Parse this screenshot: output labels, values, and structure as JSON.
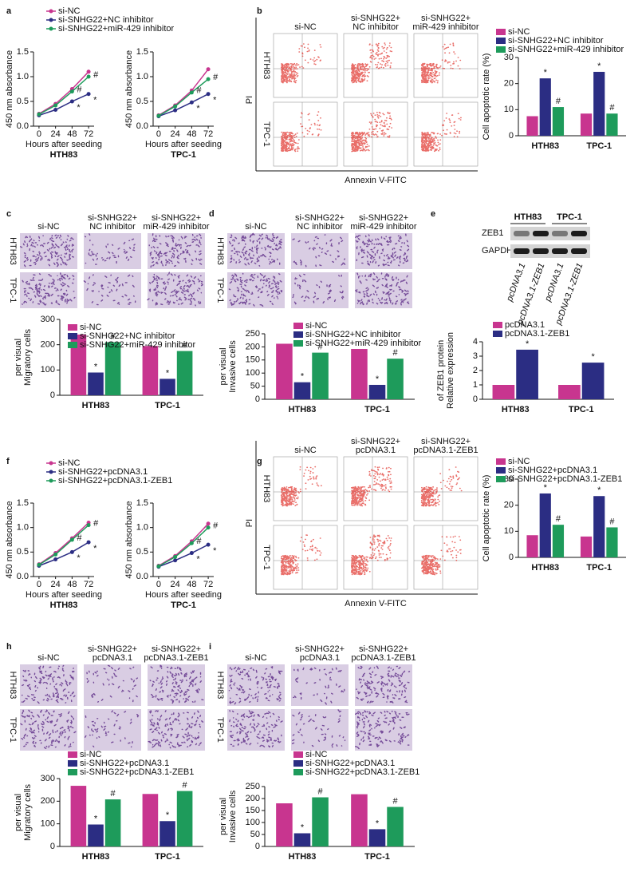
{
  "panel_letters": [
    "a",
    "b",
    "c",
    "d",
    "e",
    "f",
    "g",
    "h",
    "i"
  ],
  "images": [
    {
      "columns": [
        [
          "si-NC"
        ],
        [
          "si-SNHG22+",
          "NC inhibitor"
        ],
        [
          "si-SNHG22+",
          "miR-429 inhibitor"
        ]
      ],
      "rows": [
        "HTH83",
        "TPC-1"
      ],
      "xlabel": "Annexin V-FITC",
      "ylabel": "PI"
    },
    {
      "columns": [
        [
          "si-NC"
        ],
        [
          "si-SNHG22+",
          "NC inhibitor"
        ],
        [
          "si-SNHG22+",
          "miR-429 inhibitor"
        ]
      ],
      "rows": [
        "HTH83",
        "TPC-1"
      ]
    },
    {
      "columns": [
        [
          "si-NC"
        ],
        [
          "si-SNHG22+",
          "NC inhibitor"
        ],
        [
          "si-SNHG22+",
          "miR-429 inhibitor"
        ]
      ],
      "rows": [
        "HTH83",
        "TPC-1"
      ]
    },
    {
      "columns": [
        [
          "si-NC"
        ],
        [
          "si-SNHG22+",
          "pcDNA3.1"
        ],
        [
          "si-SNHG22+",
          "pcDNA3.1-ZEB1"
        ]
      ],
      "rows": [
        "HTH83",
        "TPC-1"
      ],
      "xlabel": "Annexin V-FITC",
      "ylabel": "PI"
    },
    {
      "columns": [
        [
          "si-NC"
        ],
        [
          "si-SNHG22+",
          "pcDNA3.1"
        ],
        [
          "si-SNHG22+",
          "pcDNA3.1-ZEB1"
        ]
      ],
      "rows": [
        "HTH83",
        "TPC-1"
      ]
    },
    {
      "columns": [
        [
          "si-NC"
        ],
        [
          "si-SNHG22+",
          "pcDNA3.1"
        ],
        [
          "si-SNHG22+",
          "pcDNA3.1-ZEB1"
        ]
      ],
      "rows": [
        "HTH83",
        "TPC-1"
      ]
    }
  ],
  "blot": {
    "groups": [
      "HTH83",
      "TPC-1"
    ],
    "rows": [
      "ZEB1",
      "GAPDH"
    ],
    "lanes": [
      "pcDNA3.1",
      "pcDNA3.1-ZEB1",
      "pcDNA3.1",
      "pcDNA3.1-ZEB1"
    ]
  },
  "chart_data": [
    {
      "type": "line",
      "subtitle": "HTH83",
      "xlabel": "Hours after seeding",
      "ylabel": "450 nm absorbance",
      "x": [
        0,
        24,
        48,
        72
      ],
      "xlim": [
        -8,
        80
      ],
      "xticks": [
        0,
        24,
        48,
        72
      ],
      "ylim": [
        0,
        1.5
      ],
      "yticks": [
        {
          "value": 0,
          "label": "0.0"
        },
        0.5,
        {
          "value": 1,
          "label": "1.0"
        },
        1.5
      ],
      "legend": "upper left",
      "series": [
        {
          "name": "si-NC",
          "color": "#c8358f",
          "values": [
            0.25,
            0.45,
            0.75,
            1.1
          ],
          "annotations": [
            null,
            null,
            null,
            null
          ]
        },
        {
          "name": "si-SNHG22+NC inhibitor",
          "color": "#2b2d83",
          "values": [
            0.22,
            0.33,
            0.5,
            0.65
          ],
          "annotations": [
            null,
            null,
            "*",
            "*"
          ]
        },
        {
          "name": "si-SNHG22+miR-429 inhibitor",
          "color": "#1e9b5b",
          "values": [
            0.24,
            0.42,
            0.7,
            1.0
          ],
          "annotations": [
            null,
            null,
            "#",
            "#"
          ]
        }
      ]
    },
    {
      "type": "line",
      "subtitle": "TPC-1",
      "xlabel": "Hours after seeding",
      "ylabel": "450 nm absorbance",
      "x": [
        0,
        24,
        48,
        72
      ],
      "xlim": [
        -8,
        80
      ],
      "xticks": [
        0,
        24,
        48,
        72
      ],
      "ylim": [
        0,
        1.5
      ],
      "yticks": [
        {
          "value": 0,
          "label": "0.0"
        },
        0.5,
        {
          "value": 1,
          "label": "1.0"
        },
        1.5
      ],
      "series": [
        {
          "color": "#c8358f",
          "values": [
            0.22,
            0.42,
            0.72,
            1.15
          ],
          "annotations": [
            null,
            null,
            null,
            null
          ]
        },
        {
          "color": "#2b2d83",
          "values": [
            0.2,
            0.32,
            0.48,
            0.65
          ],
          "annotations": [
            null,
            null,
            "*",
            "*"
          ]
        },
        {
          "color": "#1e9b5b",
          "values": [
            0.21,
            0.4,
            0.68,
            0.95
          ],
          "annotations": [
            null,
            null,
            "#",
            "#"
          ]
        }
      ]
    },
    {
      "type": "bar",
      "ylabel": "Cell apoptotic rate (%)",
      "categories": [
        "HTH83",
        "TPC-1"
      ],
      "ylim": [
        0,
        30
      ],
      "yticks": [
        0,
        10,
        20,
        30
      ],
      "legend": "upper left",
      "series": [
        {
          "name": "si-NC",
          "color": "#c8358f",
          "values": [
            7.5,
            8.5
          ],
          "annotations": [
            null,
            null
          ]
        },
        {
          "name": "si-SNHG22+NC inhibitor",
          "color": "#2b2d83",
          "values": [
            22,
            24.5
          ],
          "annotations": [
            "*",
            "*"
          ]
        },
        {
          "name": "si-SNHG22+miR-429 inhibitor",
          "color": "#1e9b5b",
          "values": [
            11,
            8.5
          ],
          "annotations": [
            "#",
            "#"
          ]
        }
      ]
    },
    {
      "type": "bar",
      "ylabel": [
        "Migratory cells",
        "per visual"
      ],
      "categories": [
        "HTH83",
        "TPC-1"
      ],
      "ylim": [
        0,
        300
      ],
      "yticks": [
        0,
        100,
        200,
        300
      ],
      "legend": "upper left",
      "series": [
        {
          "name": "si-NC",
          "color": "#c8358f",
          "values": [
            240,
            195
          ],
          "annotations": [
            null,
            null
          ]
        },
        {
          "name": "si-SNHG22+NC inhibitor",
          "color": "#2b2d83",
          "values": [
            90,
            65
          ],
          "annotations": [
            "*",
            "*"
          ]
        },
        {
          "name": "si-SNHG22+miR-429 inhibitor",
          "color": "#1e9b5b",
          "values": [
            210,
            175
          ],
          "annotations": [
            "#",
            "#"
          ]
        }
      ]
    },
    {
      "type": "bar",
      "ylabel": [
        "Invasive cells",
        "per visual"
      ],
      "categories": [
        "HTH83",
        "TPC-1"
      ],
      "ylim": [
        0,
        250
      ],
      "yticks": [
        0,
        50,
        100,
        150,
        200,
        250
      ],
      "legend": "upper left",
      "series": [
        {
          "name": "si-NC",
          "color": "#c8358f",
          "values": [
            212,
            192
          ],
          "annotations": [
            null,
            null
          ]
        },
        {
          "name": "si-SNHG22+NC inhibitor",
          "color": "#2b2d83",
          "values": [
            65,
            55
          ],
          "annotations": [
            "*",
            "*"
          ]
        },
        {
          "name": "si-SNHG22+miR-429 inhibitor",
          "color": "#1e9b5b",
          "values": [
            178,
            155
          ],
          "annotations": [
            "#",
            "#"
          ]
        }
      ]
    },
    {
      "type": "bar",
      "ylabel": [
        "Relative expression",
        "of ZEB1 protein"
      ],
      "categories": [
        "HTH83",
        "TPC-1"
      ],
      "ylim": [
        0,
        4
      ],
      "yticks": [
        0,
        1,
        2,
        3,
        4
      ],
      "legend": "upper left",
      "series": [
        {
          "name": "pcDNA3.1",
          "color": "#c8358f",
          "values": [
            1,
            1
          ],
          "annotations": [
            null,
            null
          ]
        },
        {
          "name": "pcDNA3.1-ZEB1",
          "color": "#2b2d83",
          "values": [
            3.45,
            2.55
          ],
          "annotations": [
            "*",
            "*"
          ]
        }
      ]
    },
    {
      "type": "line",
      "subtitle": "HTH83",
      "xlabel": "Hours after seeding",
      "ylabel": "450 nm absorbance",
      "x": [
        0,
        24,
        48,
        72
      ],
      "xlim": [
        -8,
        80
      ],
      "xticks": [
        0,
        24,
        48,
        72
      ],
      "ylim": [
        0,
        1.5
      ],
      "yticks": [
        {
          "value": 0,
          "label": "0.0"
        },
        0.5,
        {
          "value": 1,
          "label": "1.0"
        },
        1.5
      ],
      "legend": "upper left",
      "series": [
        {
          "name": "si-NC",
          "color": "#c8358f",
          "values": [
            0.25,
            0.48,
            0.78,
            1.1
          ],
          "annotations": [
            null,
            null,
            null,
            null
          ]
        },
        {
          "name": "si-SNHG22+pcDNA3.1",
          "color": "#2b2d83",
          "values": [
            0.22,
            0.35,
            0.5,
            0.7
          ],
          "annotations": [
            null,
            null,
            "*",
            "*"
          ]
        },
        {
          "name": "si-SNHG22+pcDNA3.1-ZEB1",
          "color": "#1e9b5b",
          "values": [
            0.24,
            0.45,
            0.75,
            1.05
          ],
          "annotations": [
            null,
            null,
            "#",
            "#"
          ]
        }
      ]
    },
    {
      "type": "line",
      "subtitle": "TPC-1",
      "xlabel": "Hours after seeding",
      "ylabel": "450 nm absorbance",
      "x": [
        0,
        24,
        48,
        72
      ],
      "xlim": [
        -8,
        80
      ],
      "xticks": [
        0,
        24,
        48,
        72
      ],
      "ylim": [
        0,
        1.5
      ],
      "yticks": [
        {
          "value": 0,
          "label": "0.0"
        },
        0.5,
        {
          "value": 1,
          "label": "1.0"
        },
        1.5
      ],
      "series": [
        {
          "color": "#c8358f",
          "values": [
            0.22,
            0.42,
            0.72,
            1.08
          ],
          "annotations": [
            null,
            null,
            null,
            null
          ]
        },
        {
          "color": "#2b2d83",
          "values": [
            0.2,
            0.33,
            0.48,
            0.65
          ],
          "annotations": [
            null,
            null,
            "*",
            "*"
          ]
        },
        {
          "color": "#1e9b5b",
          "values": [
            0.21,
            0.4,
            0.68,
            1.0
          ],
          "annotations": [
            null,
            null,
            "#",
            "#"
          ]
        }
      ]
    },
    {
      "type": "bar",
      "ylabel": "Cell apoptotic rate (%)",
      "categories": [
        "HTH83",
        "TPC-1"
      ],
      "ylim": [
        0,
        30
      ],
      "yticks": [
        0,
        10,
        20,
        30
      ],
      "legend": "upper left",
      "series": [
        {
          "name": "si-NC",
          "color": "#c8358f",
          "values": [
            8.5,
            8
          ],
          "annotations": [
            null,
            null
          ]
        },
        {
          "name": "si-SNHG22+pcDNA3.1",
          "color": "#2b2d83",
          "values": [
            24.5,
            23.5
          ],
          "annotations": [
            "*",
            "*"
          ]
        },
        {
          "name": "si-SNHG22+pcDNA3.1-ZEB1",
          "color": "#1e9b5b",
          "values": [
            12.5,
            11.5
          ],
          "annotations": [
            "#",
            "#"
          ]
        }
      ]
    },
    {
      "type": "bar",
      "ylabel": [
        "Migratory cells",
        "per visual"
      ],
      "categories": [
        "HTH83",
        "TPC-1"
      ],
      "ylim": [
        0,
        300
      ],
      "yticks": [
        0,
        100,
        200,
        300
      ],
      "legend": "upper left",
      "series": [
        {
          "name": "si-NC",
          "color": "#c8358f",
          "values": [
            268,
            232
          ],
          "annotations": [
            null,
            null
          ]
        },
        {
          "name": "si-SNHG22+pcDNA3.1",
          "color": "#2b2d83",
          "values": [
            97,
            112
          ],
          "annotations": [
            "*",
            "*"
          ]
        },
        {
          "name": "si-SNHG22+pcDNA3.1-ZEB1",
          "color": "#1e9b5b",
          "values": [
            208,
            245
          ],
          "annotations": [
            "#",
            "#"
          ]
        }
      ]
    },
    {
      "type": "bar",
      "ylabel": [
        "Invasive cells",
        "per visual"
      ],
      "categories": [
        "HTH83",
        "TPC-1"
      ],
      "ylim": [
        0,
        250
      ],
      "yticks": [
        0,
        50,
        100,
        150,
        200,
        250
      ],
      "legend": "upper left",
      "series": [
        {
          "name": "si-NC",
          "color": "#c8358f",
          "values": [
            180,
            218
          ],
          "annotations": [
            null,
            null
          ]
        },
        {
          "name": "si-SNHG22+pcDNA3.1",
          "color": "#2b2d83",
          "values": [
            55,
            72
          ],
          "annotations": [
            "*",
            "*"
          ]
        },
        {
          "name": "si-SNHG22+pcDNA3.1-ZEB1",
          "color": "#1e9b5b",
          "values": [
            205,
            165
          ],
          "annotations": [
            "#",
            "#"
          ]
        }
      ]
    }
  ]
}
